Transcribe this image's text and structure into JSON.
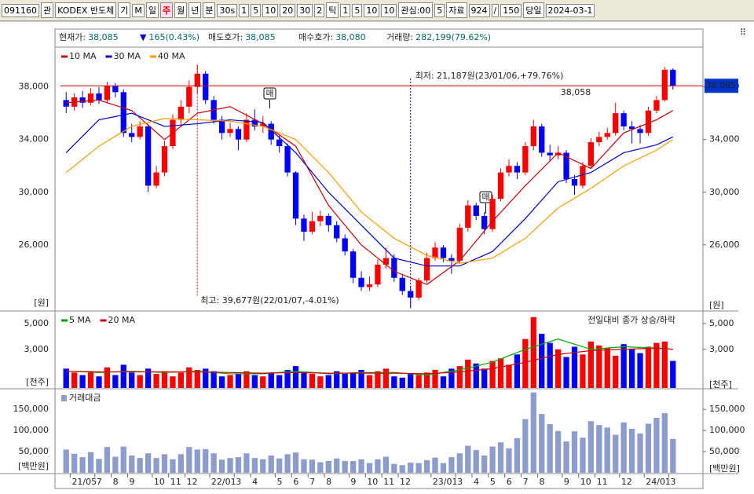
{
  "toolbar": {
    "items": [
      "091160",
      "관",
      "KODEX 반도체",
      "기",
      "M",
      "일",
      "주",
      "월",
      "년",
      "분",
      "30s",
      "1",
      "5",
      "10",
      "20",
      "30",
      "2",
      "틱",
      "1",
      "5",
      "10",
      "10",
      "관심:00",
      "5",
      "자료",
      "924",
      "/",
      "150",
      "당일",
      "2024-03-1"
    ]
  },
  "info": [
    {
      "label": "현재가:",
      "value": "38,085"
    },
    {
      "label": "▼",
      "value": "165(0.43%)"
    },
    {
      "label": "매도호가:",
      "value": "38,085"
    },
    {
      "label": "매수호가:",
      "value": "38,080"
    },
    {
      "label": "거래량:",
      "value": "282,199(79.62%)"
    }
  ],
  "chart_data": [
    {
      "type": "candlestick",
      "unit": "[원]",
      "up_color": "#ff0000",
      "down_color": "#0000ff",
      "high_label": "최고: 39,677원(22/01/07,-4.01%)",
      "low_label": "최저: 21,187원(23/01/06,+79.76%)",
      "current_price": 38085,
      "current_price_label": "38,085",
      "line_note": "38,058",
      "signal_label": "매",
      "categories": [
        null,
        "21/05",
        null,
        null,
        "7",
        null,
        "8",
        null,
        "9",
        null,
        null,
        "10",
        null,
        "11",
        null,
        "12",
        null,
        null,
        "22/01",
        null,
        null,
        "3",
        null,
        "4",
        null,
        null,
        "5",
        null,
        "6",
        null,
        "7",
        null,
        "8",
        null,
        null,
        "9",
        null,
        "10",
        null,
        "11",
        null,
        "12",
        null,
        null,
        null,
        "23/01",
        null,
        null,
        "3",
        null,
        "4",
        null,
        "5",
        null,
        "6",
        null,
        "7",
        null,
        "8",
        null,
        null,
        "9",
        null,
        "10",
        null,
        "11",
        null,
        null,
        "12",
        null,
        null,
        "24/01",
        null,
        null,
        "3"
      ],
      "ohlc": [
        [
          37000,
          37600,
          36000,
          36500
        ],
        [
          36500,
          37500,
          36200,
          37200
        ],
        [
          37200,
          37700,
          36400,
          36800
        ],
        [
          36800,
          37900,
          36600,
          37500
        ],
        [
          37500,
          38000,
          36700,
          37000
        ],
        [
          37000,
          38400,
          36800,
          38100
        ],
        [
          38100,
          38300,
          37200,
          37600
        ],
        [
          37600,
          37800,
          34200,
          34500
        ],
        [
          34500,
          35200,
          33800,
          34200
        ],
        [
          34200,
          35400,
          34000,
          35000
        ],
        [
          35000,
          35100,
          30000,
          30500
        ],
        [
          30500,
          32000,
          30300,
          31500
        ],
        [
          31500,
          33900,
          31200,
          33500
        ],
        [
          33500,
          35900,
          33300,
          35500
        ],
        [
          35500,
          37000,
          35000,
          36500
        ],
        [
          36500,
          38500,
          36000,
          38000
        ],
        [
          38000,
          39677,
          37500,
          39000
        ],
        [
          39000,
          39200,
          36700,
          37000
        ],
        [
          37000,
          37300,
          35200,
          35500
        ],
        [
          35500,
          35800,
          34000,
          34500
        ],
        [
          34500,
          35300,
          34200,
          34800
        ],
        [
          34800,
          35000,
          33200,
          34000
        ],
        [
          34000,
          36000,
          33800,
          35500
        ],
        [
          35500,
          36300,
          34700,
          35000
        ],
        [
          35000,
          35800,
          34500,
          35200
        ],
        [
          35200,
          35400,
          33600,
          34000
        ],
        [
          34000,
          34300,
          33000,
          33500
        ],
        [
          33500,
          33700,
          31200,
          31500
        ],
        [
          31500,
          31600,
          27500,
          28000
        ],
        [
          28000,
          28300,
          26300,
          27000
        ],
        [
          27000,
          28500,
          26800,
          27800
        ],
        [
          27800,
          28600,
          27400,
          28200
        ],
        [
          28200,
          28400,
          27000,
          27500
        ],
        [
          27500,
          27800,
          26200,
          26500
        ],
        [
          26500,
          26800,
          25200,
          25500
        ],
        [
          25500,
          25700,
          23100,
          23500
        ],
        [
          23500,
          24000,
          22500,
          22800
        ],
        [
          22800,
          23600,
          22500,
          23000
        ],
        [
          23000,
          24900,
          22800,
          24500
        ],
        [
          24500,
          25800,
          24200,
          25000
        ],
        [
          25000,
          25300,
          23200,
          23500
        ],
        [
          23500,
          23800,
          22200,
          22500
        ],
        [
          22500,
          22900,
          21187,
          22000
        ],
        [
          22000,
          23500,
          21800,
          23300
        ],
        [
          23300,
          25400,
          23100,
          25000
        ],
        [
          25000,
          26200,
          24800,
          25800
        ],
        [
          25800,
          26000,
          24700,
          25000
        ],
        [
          25000,
          25300,
          23800,
          24800
        ],
        [
          24800,
          27600,
          24600,
          27300
        ],
        [
          27300,
          29400,
          27000,
          29000
        ],
        [
          29000,
          29200,
          27900,
          28200
        ],
        [
          28200,
          28500,
          26800,
          27200
        ],
        [
          27200,
          29800,
          27000,
          29500
        ],
        [
          29500,
          31800,
          29300,
          31500
        ],
        [
          31500,
          32500,
          31200,
          32000
        ],
        [
          32000,
          32300,
          31000,
          31500
        ],
        [
          31500,
          33800,
          31300,
          33500
        ],
        [
          33500,
          35500,
          33200,
          35000
        ],
        [
          35000,
          35200,
          32700,
          33000
        ],
        [
          33000,
          33600,
          32400,
          32800
        ],
        [
          32800,
          33500,
          32500,
          33000
        ],
        [
          33000,
          33200,
          30700,
          31000
        ],
        [
          31000,
          31300,
          29800,
          30500
        ],
        [
          30500,
          32300,
          30300,
          32000
        ],
        [
          32000,
          34100,
          31800,
          33800
        ],
        [
          33800,
          34600,
          33500,
          34200
        ],
        [
          34200,
          34900,
          34000,
          34500
        ],
        [
          34500,
          36800,
          34300,
          36000
        ],
        [
          36000,
          36200,
          34700,
          35000
        ],
        [
          35000,
          35400,
          33700,
          34800
        ],
        [
          34800,
          35100,
          33700,
          34500
        ],
        [
          34500,
          36500,
          34300,
          36200
        ],
        [
          36200,
          37300,
          36000,
          37000
        ],
        [
          37000,
          39500,
          36900,
          39300
        ],
        [
          39300,
          39400,
          37800,
          38085
        ]
      ],
      "series": [
        {
          "name": "10 MA",
          "color": "#cc0000",
          "x": [
            0,
            4,
            8,
            12,
            16,
            20,
            24,
            28,
            32,
            36,
            40,
            44,
            48,
            52,
            56,
            60,
            64,
            68,
            72,
            74
          ],
          "values": [
            36800,
            37000,
            36200,
            34000,
            36000,
            36500,
            35200,
            33500,
            29000,
            26000,
            24000,
            23000,
            24800,
            27800,
            30500,
            33000,
            31800,
            34500,
            35500,
            36200
          ]
        },
        {
          "name": "30 MA",
          "color": "#0000cc",
          "x": [
            0,
            4,
            8,
            12,
            16,
            20,
            24,
            28,
            32,
            36,
            40,
            44,
            48,
            52,
            56,
            60,
            64,
            68,
            72,
            74
          ],
          "values": [
            33000,
            35500,
            36000,
            35000,
            35200,
            35500,
            35300,
            33000,
            30000,
            27500,
            25000,
            24400,
            24400,
            25500,
            28000,
            30800,
            31500,
            33000,
            33600,
            34200
          ]
        },
        {
          "name": "40 MA",
          "color": "#ff9900",
          "x": [
            0,
            4,
            8,
            12,
            16,
            20,
            24,
            28,
            32,
            36,
            40,
            44,
            48,
            52,
            56,
            60,
            64,
            68,
            72,
            74
          ],
          "values": [
            31500,
            33500,
            35000,
            35600,
            35500,
            35400,
            35000,
            34000,
            31500,
            28500,
            26500,
            25200,
            24600,
            25000,
            26500,
            28800,
            30300,
            32000,
            33200,
            34000
          ]
        }
      ],
      "ylim": [
        21100,
        40900
      ],
      "yticks": [
        {
          "value": 26000,
          "label": "26,000"
        },
        {
          "value": 30000,
          "label": "30,000"
        },
        {
          "value": 34000,
          "label": "34,000"
        },
        {
          "value": 38000,
          "label": "38,000"
        }
      ]
    },
    {
      "type": "bar",
      "unit": "[천주]",
      "note": "전일대비 종가 상승/하락",
      "values": [
        1500,
        1200,
        1000,
        1300,
        900,
        1600,
        1000,
        1800,
        1200,
        1000,
        1500,
        1100,
        1300,
        900,
        1200,
        1600,
        1400,
        1500,
        1300,
        900,
        1000,
        1100,
        1300,
        1000,
        900,
        1200,
        1000,
        1400,
        1700,
        1200,
        1100,
        900,
        1000,
        1300,
        1100,
        1200,
        1400,
        1000,
        1300,
        1500,
        900,
        800,
        1100,
        1000,
        1200,
        1400,
        900,
        1500,
        1700,
        2200,
        1900,
        1500,
        2100,
        2300,
        1800,
        2600,
        3800,
        5500,
        4200,
        3500,
        3000,
        2400,
        3200,
        2600,
        3600,
        3300,
        3100,
        2500,
        3400,
        3000,
        2700,
        3200,
        3500,
        3600,
        2100
      ],
      "series": [
        {
          "name": "5 MA",
          "color": "#00aa00",
          "x": [
            0,
            4,
            8,
            12,
            16,
            20,
            24,
            28,
            32,
            36,
            40,
            44,
            48,
            52,
            56,
            60,
            64,
            68,
            72,
            74
          ],
          "values": [
            1300,
            1200,
            1300,
            1200,
            1300,
            1100,
            1100,
            1300,
            1100,
            1200,
            1200,
            1000,
            1400,
            2000,
            3000,
            3800,
            3000,
            3200,
            3100,
            3000
          ]
        },
        {
          "name": "20 MA",
          "color": "#cc0000",
          "x": [
            0,
            4,
            8,
            12,
            16,
            20,
            24,
            28,
            32,
            36,
            40,
            44,
            48,
            52,
            56,
            60,
            64,
            68,
            72,
            74
          ],
          "values": [
            1300,
            1250,
            1250,
            1250,
            1250,
            1200,
            1150,
            1200,
            1150,
            1150,
            1150,
            1100,
            1250,
            1500,
            2000,
            2600,
            2900,
            3000,
            3100,
            3000
          ]
        }
      ],
      "ylim": [
        0,
        5850
      ],
      "yticks": [
        {
          "value": 3000,
          "label": "3,000"
        },
        {
          "value": 5000,
          "label": "5,000"
        }
      ]
    },
    {
      "type": "bar",
      "unit": "[백만원]",
      "series": [
        {
          "name": "거래대금",
          "color": "#8c9ccc",
          "values": [
            55000,
            45000,
            37000,
            49000,
            33000,
            61000,
            38000,
            62000,
            41000,
            35000,
            46000,
            35000,
            44000,
            32000,
            44000,
            61000,
            55000,
            56000,
            46000,
            31000,
            35000,
            37000,
            46000,
            35000,
            32000,
            41000,
            34000,
            44000,
            48000,
            32000,
            31000,
            25000,
            28000,
            34000,
            28000,
            28000,
            32000,
            23000,
            32000,
            38000,
            21000,
            18000,
            24000,
            23000,
            30000,
            36000,
            23000,
            37000,
            46000,
            64000,
            54000,
            41000,
            62000,
            72000,
            58000,
            82000,
            127000,
            190000,
            139000,
            115000,
            99000,
            74000,
            98000,
            83000,
            122000,
            113000,
            107000,
            90000,
            119000,
            104000,
            93000,
            116000,
            130000,
            141000,
            80000
          ]
        }
      ],
      "ylim": [
        0,
        195000
      ],
      "yticks": [
        {
          "value": 50000,
          "label": "50,000"
        },
        {
          "value": 100000,
          "label": "100,000"
        },
        {
          "value": 150000,
          "label": "150,000"
        }
      ]
    }
  ]
}
